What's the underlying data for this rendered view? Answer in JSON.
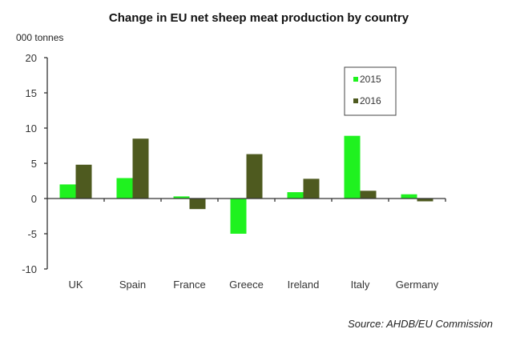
{
  "chart_data": {
    "type": "bar",
    "title": "Change in EU net sheep meat production by country",
    "ylabel": "000 tonnes",
    "xlabel": "",
    "categories": [
      "UK",
      "Spain",
      "France",
      "Greece",
      "Ireland",
      "Italy",
      "Germany"
    ],
    "series": [
      {
        "name": "2015",
        "color": "#1ff21f",
        "values": [
          2.0,
          2.9,
          0.3,
          -5.0,
          0.9,
          8.9,
          0.6
        ]
      },
      {
        "name": "2016",
        "color": "#4e5a1f",
        "values": [
          4.8,
          8.5,
          -1.5,
          6.3,
          2.8,
          1.1,
          -0.4
        ]
      }
    ],
    "ylim": [
      -10,
      20
    ],
    "yticks": [
      20,
      15,
      10,
      5,
      0,
      -5,
      -10
    ],
    "legend_position": "top-right",
    "grid": false,
    "source": "Source: AHDB/EU Commission"
  }
}
